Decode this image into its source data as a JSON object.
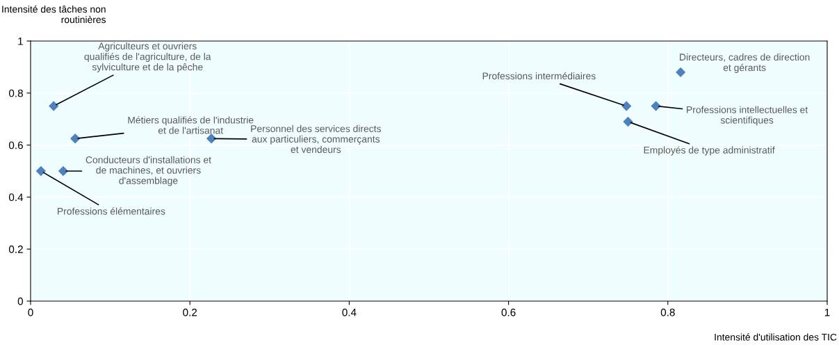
{
  "chart_data": {
    "type": "scatter",
    "xlabel": "Intensité d'utilisation des TIC",
    "ylabel": "Intensité des tâches non\nroutinières",
    "x": [
      0.029,
      0.056,
      0.227,
      0.041,
      0.013,
      0.748,
      0.75,
      0.785,
      0.816
    ],
    "series": [
      {
        "color": "#4f81bd",
        "values": [
          0.75,
          0.625,
          0.625,
          0.5,
          0.5,
          0.75,
          0.69,
          0.75,
          0.88
        ]
      }
    ],
    "xlim": [
      0,
      1
    ],
    "ylim": [
      0,
      1
    ],
    "xticks": [
      0,
      0.2,
      0.4,
      0.6,
      0.8,
      1
    ],
    "yticks": [
      0,
      0.2,
      0.4,
      0.6,
      0.8,
      1
    ],
    "grid": true,
    "marker": "diamond",
    "legend": false,
    "annotations": [
      {
        "text": "Agriculteurs et ouvriers\nqualifiés de l'agriculture, de la\nsylviculture et de la pêche",
        "x": 0.029,
        "y": 0.75
      },
      {
        "text": "Métiers qualifiés de l'industrie\net de l'artisanat",
        "x": 0.056,
        "y": 0.625
      },
      {
        "text": "Personnel des services directs\naux particuliers, commerçants\net vendeurs",
        "x": 0.227,
        "y": 0.625
      },
      {
        "text": "Conducteurs d'installations et\nde machines, et ouvriers\nd'assemblage",
        "x": 0.041,
        "y": 0.5
      },
      {
        "text": "Professions élémentaires",
        "x": 0.013,
        "y": 0.5
      },
      {
        "text": "Professions intermédiaires",
        "x": 0.748,
        "y": 0.75
      },
      {
        "text": "Employés de type administratif",
        "x": 0.75,
        "y": 0.69
      },
      {
        "text": "Professions intellectuelles et\nscientifiques",
        "x": 0.785,
        "y": 0.75
      },
      {
        "text": "Directeurs, cadres de direction\net gérants",
        "x": 0.816,
        "y": 0.88
      }
    ]
  }
}
